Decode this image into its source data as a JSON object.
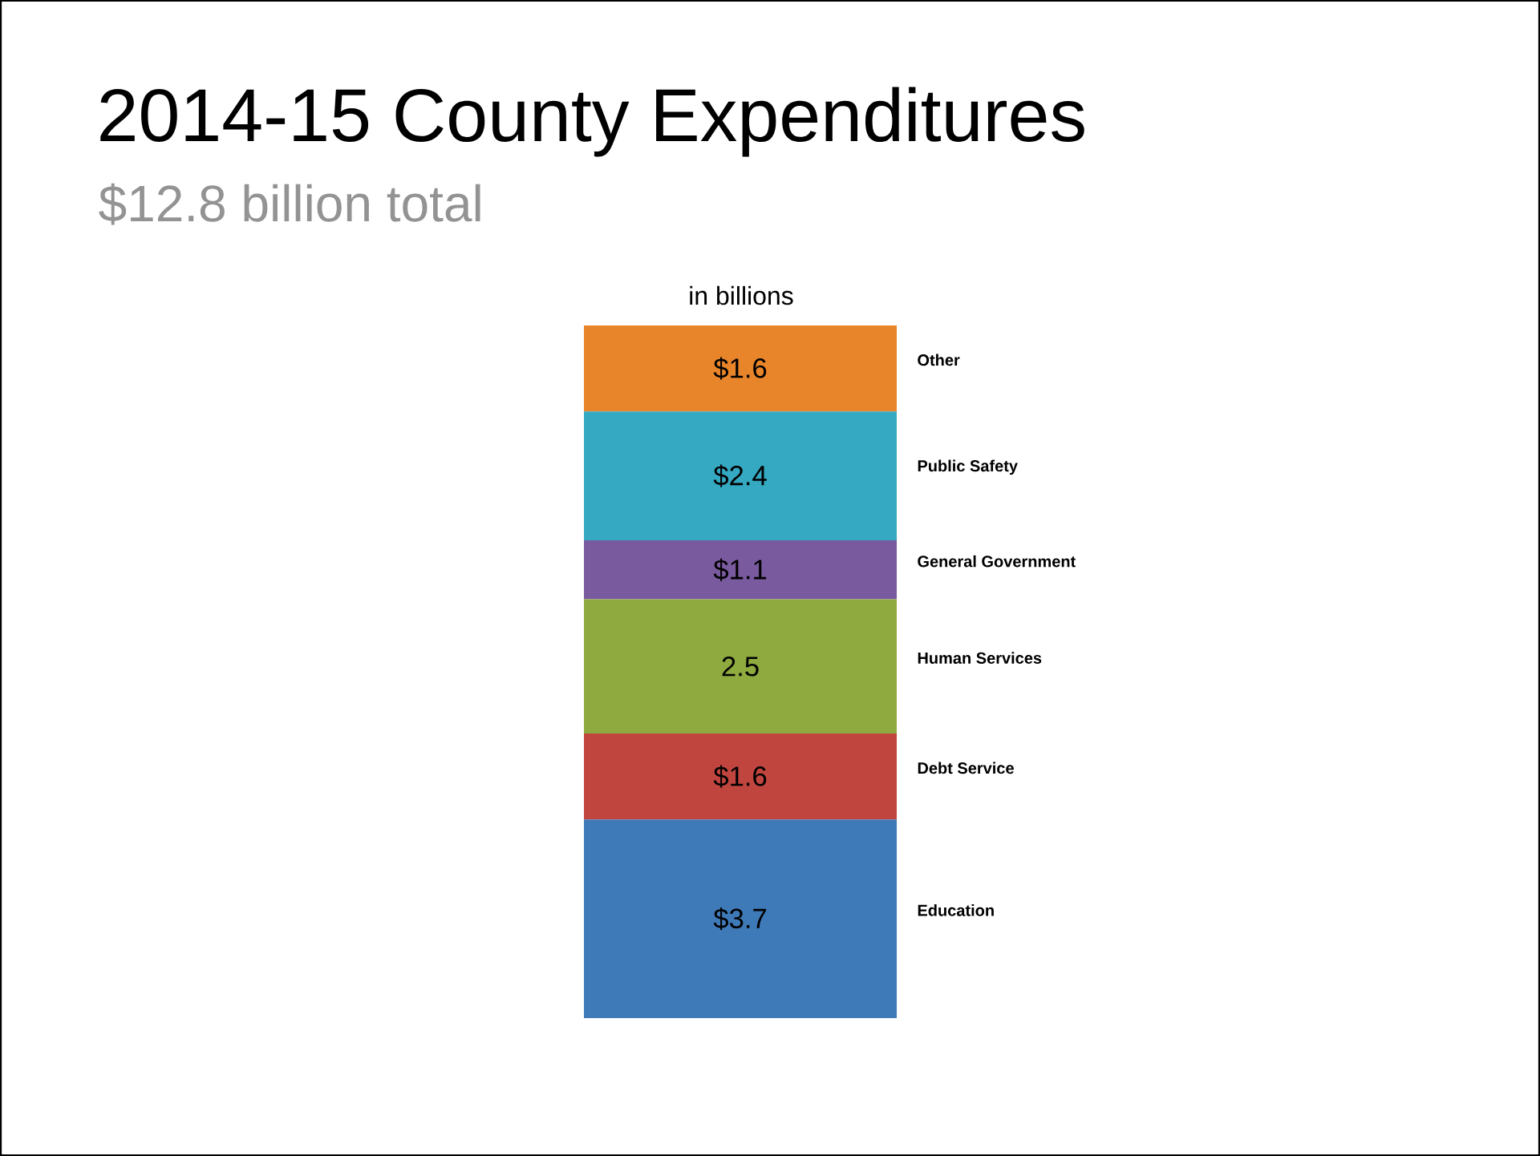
{
  "chart_data": {
    "type": "bar",
    "stacked": true,
    "title": "2014-15 County Expenditures",
    "subtitle": "$12.8 billion total",
    "annotations": [
      "in billions"
    ],
    "categories": [
      null
    ],
    "ylim": [
      0,
      12.9
    ],
    "series": [
      {
        "name": "Education",
        "color": "#3f7ab8",
        "values": [
          3.7
        ],
        "value_labels": [
          "$3.7"
        ]
      },
      {
        "name": "Debt Service",
        "color": "#c0453f",
        "values": [
          1.6
        ],
        "value_labels": [
          "$1.6"
        ]
      },
      {
        "name": "Human Services",
        "color": "#8faa3f",
        "values": [
          2.5
        ],
        "value_labels": [
          "2.5"
        ]
      },
      {
        "name": "General Government",
        "color": "#7a5a9e",
        "values": [
          1.1
        ],
        "value_labels": [
          "$1.1"
        ]
      },
      {
        "name": "Public Safety",
        "color": "#35a8c2",
        "values": [
          2.4
        ],
        "value_labels": [
          "$2.4"
        ]
      },
      {
        "name": "Other",
        "color": "#e8852a",
        "values": [
          1.6
        ],
        "value_labels": [
          "$1.6"
        ]
      }
    ]
  }
}
